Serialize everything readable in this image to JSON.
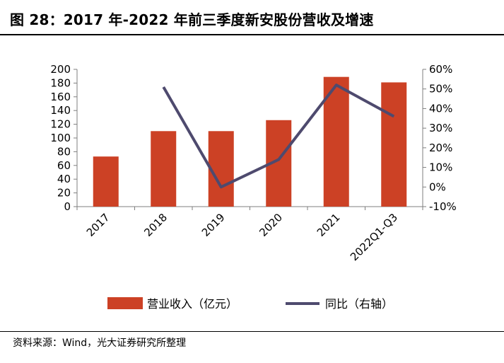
{
  "header": {
    "title": "图 28：2017 年-2022 年前三季度新安股份营收及增速"
  },
  "footer": {
    "source": "资料来源：Wind，光大证券研究所整理"
  },
  "colors": {
    "bar": "#cc4125",
    "line": "#4e4a6e",
    "axis": "#7f7f7f"
  },
  "chart_data": {
    "type": "bar+line",
    "categories": [
      "2017",
      "2018",
      "2019",
      "2020",
      "2021",
      "2022Q1-Q3"
    ],
    "series": [
      {
        "name": "营业收入（亿元）",
        "type": "bar",
        "axis": "left",
        "values": [
          73,
          110,
          110,
          126,
          189,
          181
        ]
      },
      {
        "name": "同比（右轴）",
        "type": "line",
        "axis": "right",
        "values": [
          null,
          51,
          0,
          14,
          52,
          36
        ]
      }
    ],
    "left_axis": {
      "min": 0,
      "max": 200,
      "step": 20,
      "ticks": [
        "0",
        "20",
        "40",
        "60",
        "80",
        "100",
        "120",
        "140",
        "160",
        "180",
        "200"
      ]
    },
    "right_axis": {
      "min": -10,
      "max": 60,
      "step": 10,
      "ticks": [
        "-10%",
        "0%",
        "10%",
        "20%",
        "30%",
        "40%",
        "50%",
        "60%"
      ]
    },
    "legend": {
      "position": "bottom",
      "items": [
        "营业收入（亿元）",
        "同比（右轴）"
      ]
    },
    "grid": false
  }
}
